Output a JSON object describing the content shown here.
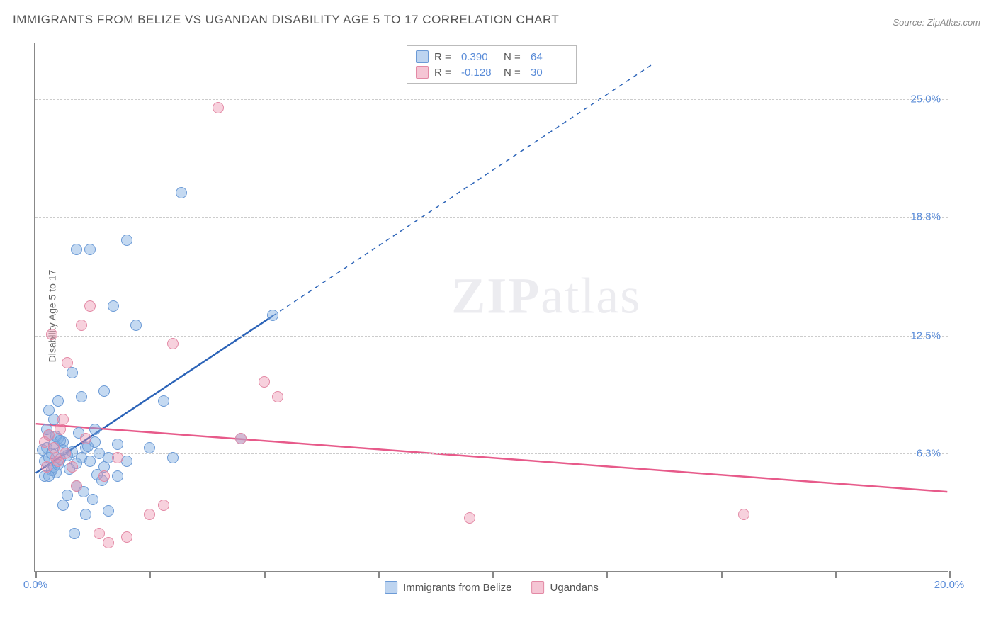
{
  "title": "IMMIGRANTS FROM BELIZE VS UGANDAN DISABILITY AGE 5 TO 17 CORRELATION CHART",
  "source": "Source: ZipAtlas.com",
  "watermark": {
    "part1": "ZIP",
    "part2": "atlas"
  },
  "chart": {
    "type": "scatter",
    "y_axis_label": "Disability Age 5 to 17",
    "background_color": "#ffffff",
    "grid_color": "#cccccc",
    "grid_dash": "4,4",
    "axis_color": "#888888",
    "x_range": [
      0,
      20
    ],
    "y_range": [
      0,
      28
    ],
    "y_gridlines": [
      {
        "value": 6.3,
        "label": "6.3%"
      },
      {
        "value": 12.5,
        "label": "12.5%"
      },
      {
        "value": 18.8,
        "label": "18.8%"
      },
      {
        "value": 25.0,
        "label": "25.0%"
      }
    ],
    "x_ticks": [
      {
        "value": 0,
        "label": "0.0%"
      },
      {
        "value": 2.5,
        "label": ""
      },
      {
        "value": 5.0,
        "label": ""
      },
      {
        "value": 7.5,
        "label": ""
      },
      {
        "value": 10.0,
        "label": ""
      },
      {
        "value": 12.5,
        "label": ""
      },
      {
        "value": 15.0,
        "label": ""
      },
      {
        "value": 17.5,
        "label": ""
      },
      {
        "value": 20.0,
        "label": "20.0%"
      }
    ],
    "series": [
      {
        "key": "belize",
        "label": "Immigrants from Belize",
        "color_fill": "rgba(124,170,225,0.45)",
        "color_stroke": "#6b9ad6",
        "marker_size": 16,
        "r_value": "0.390",
        "n_value": "64",
        "trendline": {
          "color": "#2b63b8",
          "width": 2.5,
          "solid_range": [
            0,
            5.2
          ],
          "dash_range": [
            5.2,
            13.5
          ],
          "intercept": 5.2,
          "slope": 1.6
        },
        "points": [
          [
            0.2,
            5.8
          ],
          [
            0.3,
            6.0
          ],
          [
            0.25,
            6.5
          ],
          [
            0.4,
            5.5
          ],
          [
            0.35,
            6.2
          ],
          [
            0.5,
            7.0
          ],
          [
            0.45,
            5.2
          ],
          [
            0.3,
            7.2
          ],
          [
            0.6,
            6.8
          ],
          [
            0.55,
            5.9
          ],
          [
            0.7,
            6.1
          ],
          [
            0.4,
            8.0
          ],
          [
            0.8,
            6.3
          ],
          [
            0.3,
            8.5
          ],
          [
            0.9,
            5.7
          ],
          [
            0.5,
            9.0
          ],
          [
            1.0,
            6.0
          ],
          [
            0.6,
            3.5
          ],
          [
            1.1,
            6.5
          ],
          [
            0.7,
            4.0
          ],
          [
            1.2,
            5.8
          ],
          [
            0.8,
            10.5
          ],
          [
            1.3,
            7.5
          ],
          [
            0.9,
            4.5
          ],
          [
            1.4,
            6.2
          ],
          [
            1.0,
            9.2
          ],
          [
            1.5,
            5.5
          ],
          [
            1.1,
            3.0
          ],
          [
            1.6,
            6.0
          ],
          [
            1.2,
            17.0
          ],
          [
            1.7,
            14.0
          ],
          [
            1.3,
            6.8
          ],
          [
            1.8,
            5.0
          ],
          [
            3.2,
            20.0
          ],
          [
            2.2,
            13.0
          ],
          [
            2.0,
            17.5
          ],
          [
            0.9,
            17.0
          ],
          [
            1.5,
            9.5
          ],
          [
            1.6,
            3.2
          ],
          [
            2.0,
            5.8
          ],
          [
            0.4,
            6.7
          ],
          [
            0.35,
            5.3
          ],
          [
            0.45,
            7.1
          ],
          [
            0.2,
            5.0
          ],
          [
            0.25,
            7.5
          ],
          [
            0.85,
            2.0
          ],
          [
            1.05,
            4.2
          ],
          [
            1.25,
            3.8
          ],
          [
            0.15,
            6.4
          ],
          [
            0.55,
            6.9
          ],
          [
            0.75,
            5.4
          ],
          [
            0.95,
            7.3
          ],
          [
            1.15,
            6.6
          ],
          [
            1.35,
            5.1
          ],
          [
            1.45,
            4.8
          ],
          [
            0.6,
            6.4
          ],
          [
            0.5,
            5.6
          ],
          [
            0.3,
            5.0
          ],
          [
            2.8,
            9.0
          ],
          [
            5.2,
            13.5
          ],
          [
            2.5,
            6.5
          ],
          [
            1.8,
            6.7
          ],
          [
            4.5,
            7.0
          ],
          [
            3.0,
            6.0
          ]
        ]
      },
      {
        "key": "ugandans",
        "label": "Ugandans",
        "color_fill": "rgba(235,140,170,0.4)",
        "color_stroke": "#e389a5",
        "marker_size": 16,
        "r_value": "-0.128",
        "n_value": "30",
        "trendline": {
          "color": "#e75a8a",
          "width": 2.5,
          "solid_range": [
            0,
            20
          ],
          "intercept": 7.8,
          "slope": -0.18
        },
        "points": [
          [
            0.4,
            6.5
          ],
          [
            0.3,
            7.2
          ],
          [
            0.5,
            5.8
          ],
          [
            0.6,
            8.0
          ],
          [
            0.45,
            6.0
          ],
          [
            0.7,
            11.0
          ],
          [
            0.35,
            12.5
          ],
          [
            0.8,
            5.5
          ],
          [
            0.55,
            7.5
          ],
          [
            1.0,
            13.0
          ],
          [
            1.2,
            14.0
          ],
          [
            1.4,
            2.0
          ],
          [
            1.6,
            1.5
          ],
          [
            2.0,
            1.8
          ],
          [
            2.5,
            3.0
          ],
          [
            3.0,
            12.0
          ],
          [
            2.8,
            3.5
          ],
          [
            1.5,
            5.0
          ],
          [
            4.0,
            24.5
          ],
          [
            5.0,
            10.0
          ],
          [
            5.3,
            9.2
          ],
          [
            4.5,
            7.0
          ],
          [
            9.5,
            2.8
          ],
          [
            15.5,
            3.0
          ],
          [
            0.65,
            6.2
          ],
          [
            0.25,
            5.5
          ],
          [
            0.9,
            4.5
          ],
          [
            1.8,
            6.0
          ],
          [
            1.1,
            7.0
          ],
          [
            0.2,
            6.8
          ]
        ]
      }
    ],
    "legend_top": {
      "r_label": "R =",
      "n_label": "N ="
    },
    "legend_bottom": [
      {
        "swatch": "a",
        "label_key": "series.0.label"
      },
      {
        "swatch": "b",
        "label_key": "series.1.label"
      }
    ]
  }
}
